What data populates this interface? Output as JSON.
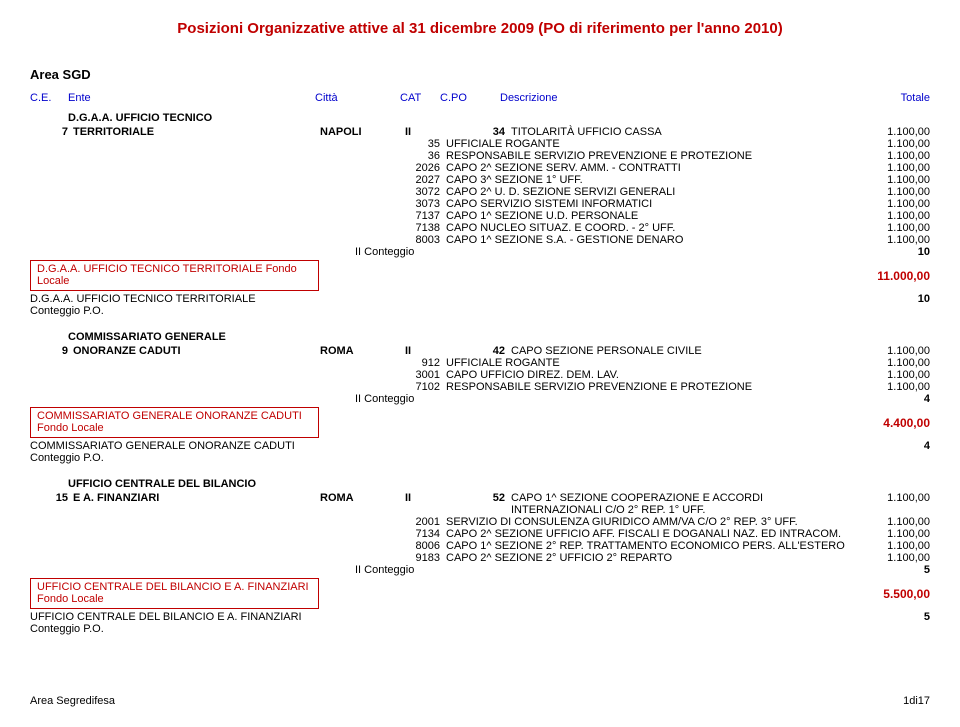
{
  "title": "Posizioni Organizzative attive al 31 dicembre 2009 (PO di riferimento per l'anno 2010)",
  "area_label": "Area SGD",
  "headers": {
    "ce": "C.E.",
    "ente": "Ente",
    "citta": "Città",
    "cat": "CAT",
    "cpo": "C.PO",
    "desc": "Descrizione",
    "tot": "Totale"
  },
  "s1": {
    "header": "D.G.A.A. UFFICIO TECNICO",
    "ce": "7",
    "ente": "TERRITORIALE",
    "citta": "NAPOLI",
    "cat": "II",
    "first_code": "34",
    "first_desc": "TITOLARITÀ UFFICIO CASSA",
    "first_val": "1.100,00",
    "rows": [
      {
        "c": "35",
        "d": "UFFICIALE ROGANTE",
        "v": "1.100,00"
      },
      {
        "c": "36",
        "d": "RESPONSABILE SERVIZIO  PREVENZIONE E PROTEZIONE",
        "v": "1.100,00"
      },
      {
        "c": "2026",
        "d": "CAPO 2^ SEZIONE  SERV. AMM. - CONTRATTI",
        "v": "1.100,00"
      },
      {
        "c": "2027",
        "d": "CAPO 3^ SEZIONE 1° UFF.",
        "v": "1.100,00"
      },
      {
        "c": "3072",
        "d": "CAPO 2^ U. D. SEZIONE SERVIZI GENERALI",
        "v": "1.100,00"
      },
      {
        "c": "3073",
        "d": "CAPO SERVIZIO  SISTEMI INFORMATICI",
        "v": "1.100,00"
      },
      {
        "c": "7137",
        "d": "CAPO 1^ SEZIONE U.D. PERSONALE",
        "v": "1.100,00"
      },
      {
        "c": "7138",
        "d": "CAPO NUCLEO SITUAZ. E COORD. - 2° UFF.",
        "v": "1.100,00"
      },
      {
        "c": "8003",
        "d": "CAPO 1^ SEZIONE S.A. - GESTIONE DENARO",
        "v": "1.100,00"
      }
    ],
    "ii_label": "II Conteggio",
    "ii_val": "10",
    "fondo_box": "D.G.A.A. UFFICIO TECNICO TERRITORIALE Fondo Locale",
    "fondo_val": "11.000,00",
    "po_text": "D.G.A.A. UFFICIO TECNICO TERRITORIALE Conteggio P.O.",
    "po_val": "10"
  },
  "s2": {
    "header": "COMMISSARIATO GENERALE",
    "ce": "9",
    "ente": "ONORANZE CADUTI",
    "citta": "ROMA",
    "cat": "II",
    "first_code": "42",
    "first_desc": "CAPO SEZIONE PERSONALE CIVILE",
    "first_val": "1.100,00",
    "rows": [
      {
        "c": "912",
        "d": "UFFICIALE ROGANTE",
        "v": "1.100,00"
      },
      {
        "c": "3001",
        "d": "CAPO UFFICIO DIREZ. DEM. LAV.",
        "v": "1.100,00"
      },
      {
        "c": "7102",
        "d": "RESPONSABILE SERVIZIO PREVENZIONE E PROTEZIONE",
        "v": "1.100,00"
      }
    ],
    "ii_label": "II Conteggio",
    "ii_val": "4",
    "fondo_box": "COMMISSARIATO GENERALE ONORANZE CADUTI Fondo Locale",
    "fondo_val": "4.400,00",
    "po_text": "COMMISSARIATO GENERALE ONORANZE CADUTI Conteggio P.O.",
    "po_val": "4"
  },
  "s3": {
    "header": "UFFICIO CENTRALE DEL BILANCIO",
    "ce": "15",
    "ente": "E  A. FINANZIARI",
    "citta": "ROMA",
    "cat": "II",
    "first_code": "52",
    "first_desc": "CAPO 1^ SEZIONE  COOPERAZIONE E ACCORDI INTERNAZIONALI C/O 2° REP. 1° UFF.",
    "first_val": "1.100,00",
    "rows": [
      {
        "c": "2001",
        "d": "SERVIZIO DI CONSULENZA GIURIDICO AMM/VA C/O 2° REP. 3° UFF.",
        "v": "1.100,00"
      },
      {
        "c": "7134",
        "d": "CAPO 2^ SEZIONE UFFICIO AFF. FISCALI E DOGANALI NAZ. ED INTRACOM.",
        "v": "1.100,00"
      },
      {
        "c": "8006",
        "d": "CAPO 1^ SEZIONE 2° REP. TRATTAMENTO ECONOMICO PERS. ALL'ESTERO",
        "v": "1.100,00"
      },
      {
        "c": "9183",
        "d": "CAPO 2^ SEZIONE 2° UFFICIO 2° REPARTO",
        "v": "1.100,00"
      }
    ],
    "ii_label": "II Conteggio",
    "ii_val": "5",
    "fondo_box": "UFFICIO CENTRALE DEL BILANCIO E  A. FINANZIARI Fondo Locale",
    "fondo_val": "5.500,00",
    "po_text": "UFFICIO CENTRALE DEL BILANCIO E  A. FINANZIARI Conteggio P.O.",
    "po_val": "5"
  },
  "footer": {
    "left": "Area Segredifesa",
    "right": "1di17"
  }
}
